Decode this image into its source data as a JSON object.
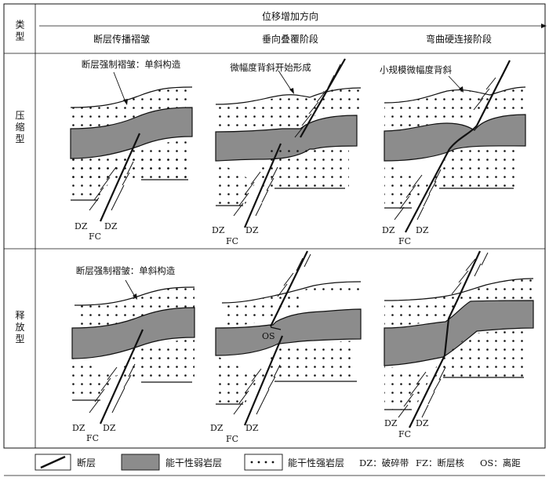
{
  "header": {
    "type_label": "类型",
    "axis_label": "位移增加方向",
    "stages": [
      "断层传播褶皱",
      "垂向叠覆阶段",
      "弯曲硬连接阶段"
    ]
  },
  "rows": [
    {
      "label": "压缩型",
      "panels": [
        {
          "annotation": "断层强制褶皱：单斜构造",
          "labels": {
            "dz1": "DZ",
            "dz2": "DZ",
            "fc": "FC"
          }
        },
        {
          "annotation": "微幅度背斜开始形成",
          "labels": {
            "dz1": "DZ",
            "dz2": "DZ",
            "fc": "FC"
          }
        },
        {
          "annotation": "小规模微幅度背斜",
          "labels": {
            "dz1": "DZ",
            "dz2": "DZ",
            "fc": "FC"
          }
        }
      ]
    },
    {
      "label": "释放型",
      "panels": [
        {
          "annotation": "断层强制褶皱：单斜构造",
          "labels": {
            "dz1": "DZ",
            "dz2": "DZ",
            "fc": "FC"
          }
        },
        {
          "annotation": "OS",
          "labels": {
            "dz1": "DZ",
            "dz2": "DZ",
            "fc": "FC"
          }
        },
        {
          "annotation": "",
          "labels": {
            "dz1": "DZ",
            "dz2": "DZ",
            "fc": "FC"
          }
        }
      ]
    }
  ],
  "legend": {
    "fault": "断层",
    "weak": "能干性弱岩层",
    "strong": "能干性强岩层",
    "dz": "DZ：破碎带",
    "fz": "FZ：断层核",
    "os": "OS：离距"
  },
  "colors": {
    "weak_layer": "#8c8c8c",
    "line": "#111111"
  }
}
